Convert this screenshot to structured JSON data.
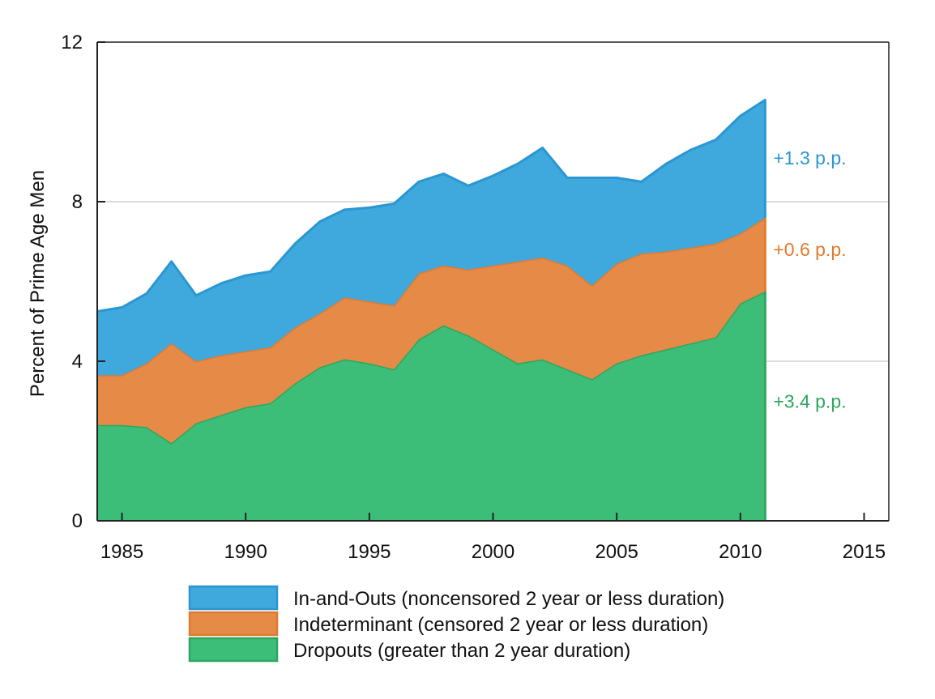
{
  "chart_data": {
    "type": "area",
    "stacked": true,
    "title": "",
    "xlabel": "",
    "ylabel": "Percent of Prime Age Men",
    "xlim": [
      1984,
      2016
    ],
    "ylim": [
      0,
      12
    ],
    "x_ticks": [
      1985,
      1990,
      1995,
      2000,
      2005,
      2010,
      2015
    ],
    "y_ticks": [
      0,
      4,
      8,
      12
    ],
    "grid": "horizontal",
    "legend_position": "bottom",
    "x": [
      1984,
      1985,
      1986,
      1987,
      1988,
      1989,
      1990,
      1991,
      1992,
      1993,
      1994,
      1995,
      1996,
      1997,
      1998,
      1999,
      2000,
      2001,
      2002,
      2003,
      2004,
      2005,
      2006,
      2007,
      2008,
      2009,
      2010,
      2011
    ],
    "series": [
      {
        "name": "Dropouts (greater than 2 year duration)",
        "color": "#3dbe78",
        "edge": "#2ca75f",
        "values": [
          2.4,
          2.4,
          2.35,
          1.95,
          2.45,
          2.65,
          2.85,
          2.95,
          3.45,
          3.85,
          4.05,
          3.95,
          3.8,
          4.55,
          4.9,
          4.65,
          4.3,
          3.95,
          4.05,
          3.8,
          3.55,
          3.95,
          4.15,
          4.3,
          4.45,
          4.6,
          5.45,
          5.75
        ]
      },
      {
        "name": "Indeterminant (censored 2 year or less duration)",
        "color": "#e68a47",
        "edge": "#e07a2e",
        "values": [
          1.25,
          1.25,
          1.6,
          2.5,
          1.55,
          1.5,
          1.4,
          1.4,
          1.4,
          1.35,
          1.55,
          1.55,
          1.6,
          1.65,
          1.5,
          1.65,
          2.1,
          2.55,
          2.55,
          2.6,
          2.35,
          2.5,
          2.55,
          2.45,
          2.4,
          2.35,
          1.75,
          1.85
        ]
      },
      {
        "name": "In-and-Outs (noncensored 2 year or less duration)",
        "color": "#3fa9de",
        "edge": "#2a96d2",
        "values": [
          1.6,
          1.7,
          1.75,
          2.05,
          1.65,
          1.8,
          1.9,
          1.9,
          2.1,
          2.3,
          2.2,
          2.35,
          2.55,
          2.3,
          2.3,
          2.1,
          2.25,
          2.45,
          2.75,
          2.2,
          2.7,
          2.15,
          1.8,
          2.2,
          2.45,
          2.6,
          2.95,
          2.95
        ]
      }
    ],
    "annotations": [
      {
        "text": "+1.3 p.p.",
        "color": "#2a96d2",
        "y": 9.1
      },
      {
        "text": "+0.6 p.p.",
        "color": "#e07a2e",
        "y": 6.8
      },
      {
        "text": "+3.4 p.p.",
        "color": "#2ca75f",
        "y": 3.0
      }
    ],
    "legend": [
      {
        "label": "In-and-Outs (noncensored 2 year or less duration)",
        "color": "#3fa9de",
        "edge": "#2a96d2"
      },
      {
        "label": "Indeterminant (censored 2 year or less duration)",
        "color": "#e68a47",
        "edge": "#e07a2e"
      },
      {
        "label": "Dropouts (greater than 2 year duration)",
        "color": "#3dbe78",
        "edge": "#2ca75f"
      }
    ]
  }
}
